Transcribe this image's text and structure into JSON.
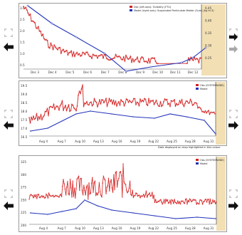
{
  "colors": {
    "observed": "#d42020",
    "model": "#2233bb",
    "highlight_band": "#f2dfb4",
    "legend_box": "#d42020"
  },
  "icons": {
    "expand": "expand-arrows-icon",
    "previous": "left-arrow-icon",
    "next": "right-arrow-icon"
  },
  "panel1": {
    "legend": {
      "observed": "Dec (left axis): Turbidity (FTU)",
      "model": "Model (right axis): Suspended Particulate Matter (Sum) (kg m-3)"
    },
    "left_ticks": [
      "3.0",
      "2.5",
      "2.0",
      "1.5",
      "1.0",
      "0.5"
    ],
    "right_ticks": [
      "0.45",
      "0.40",
      "0.35",
      "0.30",
      "0.25"
    ],
    "x_ticks": [
      "Dec 3",
      "Dec 4",
      "Dec 5",
      "Dec 6",
      "Dec 7",
      "Dec 8",
      "Dec 9",
      "Dec 10",
      "Dec 11",
      "Dec 12"
    ]
  },
  "panel2": {
    "legend": {
      "observed": "Obs (SYSTEMWIDE)",
      "model": "Model"
    },
    "left_ticks": [
      "19.5",
      "19.0",
      "18.5",
      "18.0",
      "17.5",
      "17.0",
      "16.5"
    ],
    "x_ticks": [
      "Aug 4",
      "Aug 7",
      "Aug 10",
      "Aug 13",
      "Aug 16",
      "Aug 19",
      "Aug 22",
      "Aug 25",
      "Aug 28",
      "Aug 31"
    ],
    "caption": "Date displayed on map highlighted in this colour"
  },
  "panel3": {
    "legend": {
      "observed": "Obs (SYSTEMWIDE)",
      "model": "Model"
    },
    "left_ticks": [
      "325",
      "300",
      "275",
      "250",
      "225",
      "200"
    ],
    "x_ticks": [
      "Aug 4",
      "Aug 7",
      "Aug 10",
      "Aug 13",
      "Aug 16",
      "Aug 19",
      "Aug 22",
      "Aug 25",
      "Aug 28",
      "Aug 31"
    ]
  }
}
